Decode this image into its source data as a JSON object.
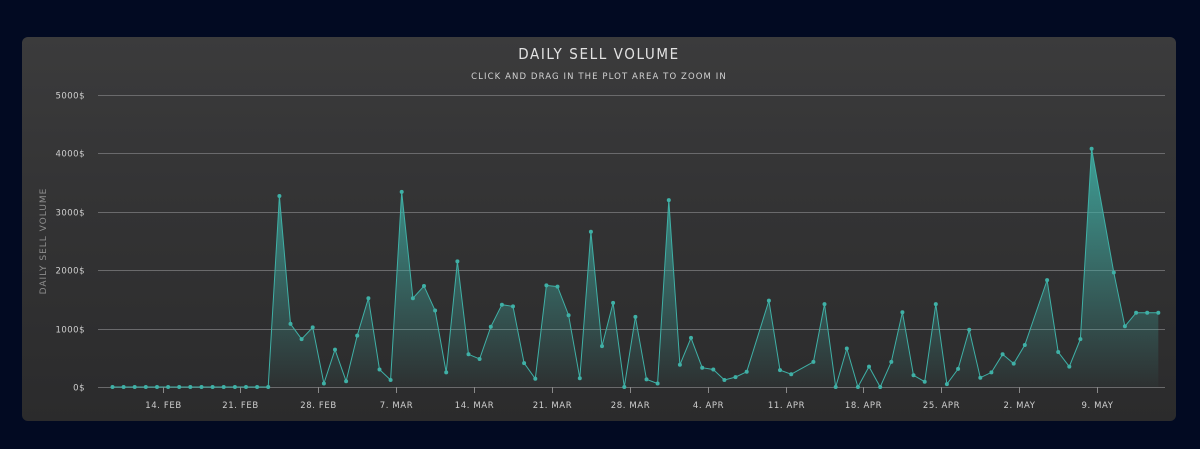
{
  "colors": {
    "series": "#3fb0a6",
    "background": "#020a22",
    "card": "#363637"
  },
  "chart_data": {
    "type": "area",
    "title": "DAILY SELL VOLUME",
    "subtitle": "CLICK AND DRAG IN THE PLOT AREA TO ZOOM IN",
    "ylabel": "DAILY SELL VOLUME",
    "xlabel": "",
    "ylim": [
      0,
      5000
    ],
    "y_ticks": [
      {
        "value": 0,
        "label": "0$"
      },
      {
        "value": 1000,
        "label": "1000$"
      },
      {
        "value": 2000,
        "label": "2000$"
      },
      {
        "value": 3000,
        "label": "3000$"
      },
      {
        "value": 4000,
        "label": "4000$"
      },
      {
        "value": 5000,
        "label": "5000$"
      }
    ],
    "x_ticks": [
      {
        "day": 4.5,
        "label": "14. FEB"
      },
      {
        "day": 11.5,
        "label": "21. FEB"
      },
      {
        "day": 18.5,
        "label": "28. FEB"
      },
      {
        "day": 25.5,
        "label": "7. MAR"
      },
      {
        "day": 32.5,
        "label": "14. MAR"
      },
      {
        "day": 39.5,
        "label": "21. MAR"
      },
      {
        "day": 46.5,
        "label": "28. MAR"
      },
      {
        "day": 53.5,
        "label": "4. APR"
      },
      {
        "day": 60.5,
        "label": "11. APR"
      },
      {
        "day": 67.5,
        "label": "18. APR"
      },
      {
        "day": 74.5,
        "label": "25. APR"
      },
      {
        "day": 81.5,
        "label": "2. MAY"
      },
      {
        "day": 88.5,
        "label": "9. MAY"
      }
    ],
    "x_range": [
      -1.3,
      94.6
    ],
    "series": [
      {
        "name": "Daily Sell Volume",
        "x": [
          0,
          1,
          2,
          3,
          4,
          5,
          6,
          7,
          8,
          9,
          10,
          11,
          12,
          13,
          14,
          15,
          16,
          17,
          18,
          19,
          20,
          21,
          22,
          23,
          24,
          25,
          26,
          27,
          28,
          29,
          30,
          31,
          32,
          33,
          34,
          35,
          36,
          37,
          38,
          39,
          40,
          41,
          42,
          43,
          44,
          45,
          46,
          47,
          48,
          49,
          50,
          51,
          52,
          53,
          54,
          55,
          56,
          57,
          59,
          60,
          61,
          63,
          64,
          65,
          66,
          67,
          68,
          69,
          70,
          71,
          72,
          73,
          74,
          75,
          76,
          77,
          78,
          79,
          80,
          81,
          82,
          84,
          85,
          86,
          87,
          88,
          90,
          91,
          92,
          93,
          94
        ],
        "values": [
          0,
          0,
          0,
          0,
          0,
          0,
          0,
          0,
          0,
          0,
          0,
          0,
          0,
          0,
          0,
          3270,
          1080,
          820,
          1020,
          60,
          640,
          100,
          880,
          1520,
          300,
          120,
          3340,
          1520,
          1730,
          1310,
          250,
          2150,
          560,
          480,
          1030,
          1410,
          1380,
          410,
          140,
          1740,
          1720,
          1230,
          150,
          2660,
          700,
          1440,
          0,
          1200,
          130,
          60,
          3200,
          380,
          840,
          330,
          300,
          120,
          170,
          260,
          1480,
          290,
          220,
          430,
          1420,
          0,
          660,
          0,
          350,
          0,
          430,
          1280,
          200,
          90,
          1420,
          50,
          310,
          980,
          160,
          250,
          560,
          400,
          720,
          1830,
          600,
          350,
          820,
          4080,
          1960,
          1040,
          1270,
          1270,
          1270
        ]
      }
    ]
  }
}
